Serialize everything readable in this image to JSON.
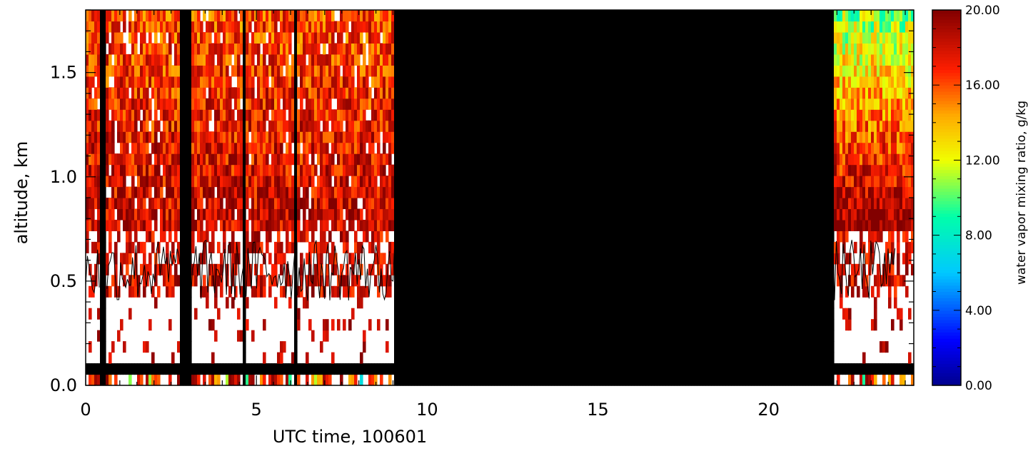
{
  "chart_data": {
    "type": "heatmap",
    "title": "",
    "xlabel": "UTC time, 100601",
    "ylabel": "altitude, km",
    "xlim": [
      0,
      24.25
    ],
    "ylim": [
      0,
      1.8
    ],
    "x_ticks": [
      0,
      5,
      10,
      15,
      20
    ],
    "x_tick_labels": [
      "0",
      "5",
      "10",
      "15",
      "20"
    ],
    "y_ticks": [
      0.0,
      0.5,
      1.0,
      1.5
    ],
    "y_tick_labels": [
      "0.0",
      "0.5",
      "1.0",
      "1.5"
    ],
    "colorbar": {
      "label": "water vapor mixing ratio, g/kg",
      "range": [
        0,
        20
      ],
      "ticks": [
        0,
        4,
        8,
        12,
        16,
        20
      ],
      "tick_labels": [
        "0.00",
        "4.00",
        "8.00",
        "12.00",
        "16.00",
        "20.00"
      ],
      "colormap": "rainbow"
    },
    "no_data_segments": [
      {
        "start": 0.4,
        "end": 0.62
      },
      {
        "start": 2.78,
        "end": 3.08
      },
      {
        "start": 4.62,
        "end": 4.7
      },
      {
        "start": 6.12,
        "end": 6.2
      },
      {
        "start": 9.05,
        "end": 21.88
      }
    ],
    "no_data_altitude_band": [
      0.06,
      0.12
    ],
    "contour_altitude_approx": [
      0.4,
      0.7
    ]
  }
}
